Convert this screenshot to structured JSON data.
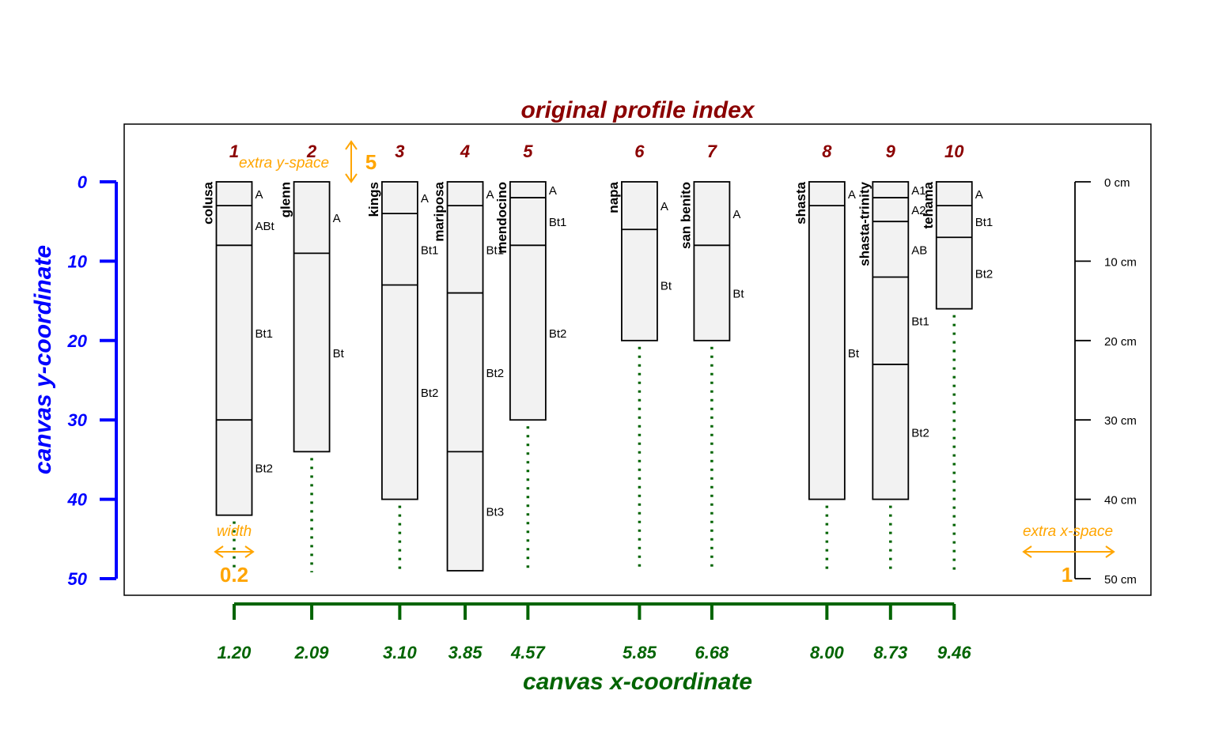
{
  "title": "original profile index",
  "ylabel": "canvas y-coordinate",
  "xlabel": "canvas x-coordinate",
  "colors": {
    "title": "#8b0000",
    "yaxis": "#0000ff",
    "xaxis": "#006400",
    "annot": "#ffa500",
    "box_fill": "#f2f2f2"
  },
  "chart_data": {
    "type": "soil-profile-sketch",
    "depth_range": [
      0,
      50
    ],
    "depth_ticks": [
      "0",
      "10",
      "20",
      "30",
      "40",
      "50"
    ],
    "depth_scale_ticks": [
      0,
      10,
      20,
      30,
      40,
      50
    ],
    "depth_scale_unit": "cm",
    "profiles": [
      {
        "index": "1",
        "name": "colusa",
        "x": 1.2,
        "x_label": "1.20",
        "depth": 42,
        "horizons": [
          {
            "name": "A",
            "top": 0,
            "bottom": 3
          },
          {
            "name": "ABt",
            "top": 3,
            "bottom": 8
          },
          {
            "name": "Bt1",
            "top": 8,
            "bottom": 30
          },
          {
            "name": "Bt2",
            "top": 30,
            "bottom": 42
          }
        ]
      },
      {
        "index": "2",
        "name": "glenn",
        "x": 2.09,
        "x_label": "2.09",
        "depth": 34,
        "horizons": [
          {
            "name": "A",
            "top": 0,
            "bottom": 9
          },
          {
            "name": "Bt",
            "top": 9,
            "bottom": 34
          }
        ]
      },
      {
        "index": "3",
        "name": "kings",
        "x": 3.1,
        "x_label": "3.10",
        "depth": 40,
        "horizons": [
          {
            "name": "A",
            "top": 0,
            "bottom": 4
          },
          {
            "name": "Bt1",
            "top": 4,
            "bottom": 13
          },
          {
            "name": "Bt2",
            "top": 13,
            "bottom": 40
          }
        ]
      },
      {
        "index": "4",
        "name": "mariposa",
        "x": 3.85,
        "x_label": "3.85",
        "depth": 49,
        "horizons": [
          {
            "name": "A",
            "top": 0,
            "bottom": 3
          },
          {
            "name": "Bt1",
            "top": 3,
            "bottom": 14
          },
          {
            "name": "Bt2",
            "top": 14,
            "bottom": 34
          },
          {
            "name": "Bt3",
            "top": 34,
            "bottom": 49
          }
        ]
      },
      {
        "index": "5",
        "name": "mendocino",
        "x": 4.57,
        "x_label": "4.57",
        "depth": 30,
        "horizons": [
          {
            "name": "A",
            "top": 0,
            "bottom": 2
          },
          {
            "name": "Bt1",
            "top": 2,
            "bottom": 8
          },
          {
            "name": "Bt2",
            "top": 8,
            "bottom": 30
          }
        ]
      },
      {
        "index": "6",
        "name": "napa",
        "x": 5.85,
        "x_label": "5.85",
        "depth": 20,
        "horizons": [
          {
            "name": "A",
            "top": 0,
            "bottom": 6
          },
          {
            "name": "Bt",
            "top": 6,
            "bottom": 20
          }
        ]
      },
      {
        "index": "7",
        "name": "san benito",
        "x": 6.68,
        "x_label": "6.68",
        "depth": 20,
        "horizons": [
          {
            "name": "A",
            "top": 0,
            "bottom": 8
          },
          {
            "name": "Bt",
            "top": 8,
            "bottom": 20
          }
        ]
      },
      {
        "index": "8",
        "name": "shasta",
        "x": 8.0,
        "x_label": "8.00",
        "depth": 40,
        "horizons": [
          {
            "name": "A",
            "top": 0,
            "bottom": 3
          },
          {
            "name": "Bt",
            "top": 3,
            "bottom": 40
          }
        ]
      },
      {
        "index": "9",
        "name": "shasta-trinity",
        "x": 8.73,
        "x_label": "8.73",
        "depth": 40,
        "horizons": [
          {
            "name": "A1",
            "top": 0,
            "bottom": 2
          },
          {
            "name": "A2",
            "top": 2,
            "bottom": 5
          },
          {
            "name": "AB",
            "top": 5,
            "bottom": 12
          },
          {
            "name": "Bt1",
            "top": 12,
            "bottom": 23
          },
          {
            "name": "Bt2",
            "top": 23,
            "bottom": 40
          }
        ]
      },
      {
        "index": "10",
        "name": "tehama",
        "x": 9.46,
        "x_label": "9.46",
        "depth": 16,
        "horizons": [
          {
            "name": "A",
            "top": 0,
            "bottom": 3
          },
          {
            "name": "Bt1",
            "top": 3,
            "bottom": 7
          },
          {
            "name": "Bt2",
            "top": 7,
            "bottom": 16
          }
        ]
      }
    ]
  },
  "annotations": {
    "extra_y_space_label": "extra y-space",
    "extra_y_space_value": "5",
    "width_label": "width",
    "width_value": "0.2",
    "extra_x_space_label": "extra x-space",
    "extra_x_space_value": "1"
  }
}
